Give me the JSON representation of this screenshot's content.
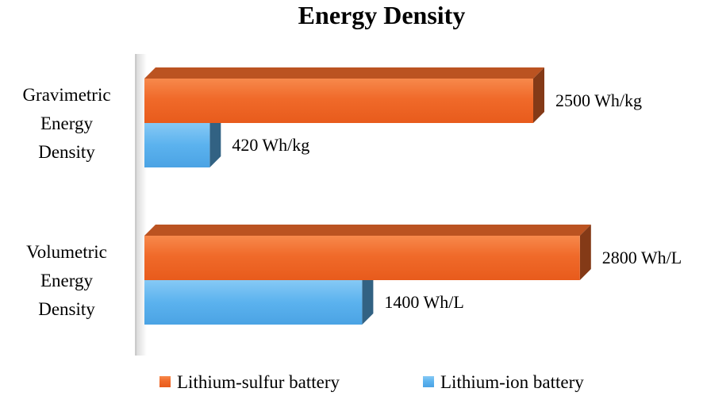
{
  "chart_data": {
    "type": "bar",
    "orientation": "horizontal",
    "three_d": true,
    "title": "Energy Density",
    "categories": [
      [
        "Gravimetric",
        "Energy",
        "Density"
      ],
      [
        "Volumetric",
        "Energy",
        "Density"
      ]
    ],
    "series": [
      {
        "name": "Lithium-sulfur battery",
        "color": "#F06A2A",
        "values": [
          2500,
          2800
        ],
        "labels": [
          "2500 Wh/kg",
          "2800 Wh/L"
        ]
      },
      {
        "name": "Lithium-ion battery",
        "color": "#5BB2EE",
        "values": [
          420,
          1400
        ],
        "labels": [
          "420 Wh/kg",
          "1400 Wh/L"
        ]
      }
    ],
    "xlim": [
      0,
      3000
    ],
    "grid": false,
    "legend_position": "bottom"
  }
}
